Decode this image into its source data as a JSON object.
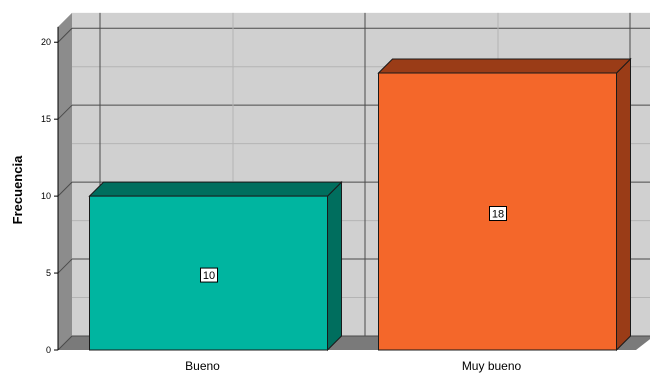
{
  "chart_data": {
    "type": "bar",
    "categories": [
      "Bueno",
      "Muy bueno"
    ],
    "values": [
      10,
      18
    ],
    "ylabel": "Frecuencia",
    "xlabel": "",
    "title": "",
    "ylim": [
      0,
      21
    ],
    "yticks": [
      0,
      5,
      10,
      15,
      20
    ],
    "grid": true,
    "three_d": true,
    "colors": [
      "#00b5a0",
      "#f4672a"
    ],
    "side_colors": [
      "#006e5e",
      "#9a3c17"
    ],
    "wall_color": "#d0d0d0",
    "floor_color": "#7a7a7a"
  }
}
